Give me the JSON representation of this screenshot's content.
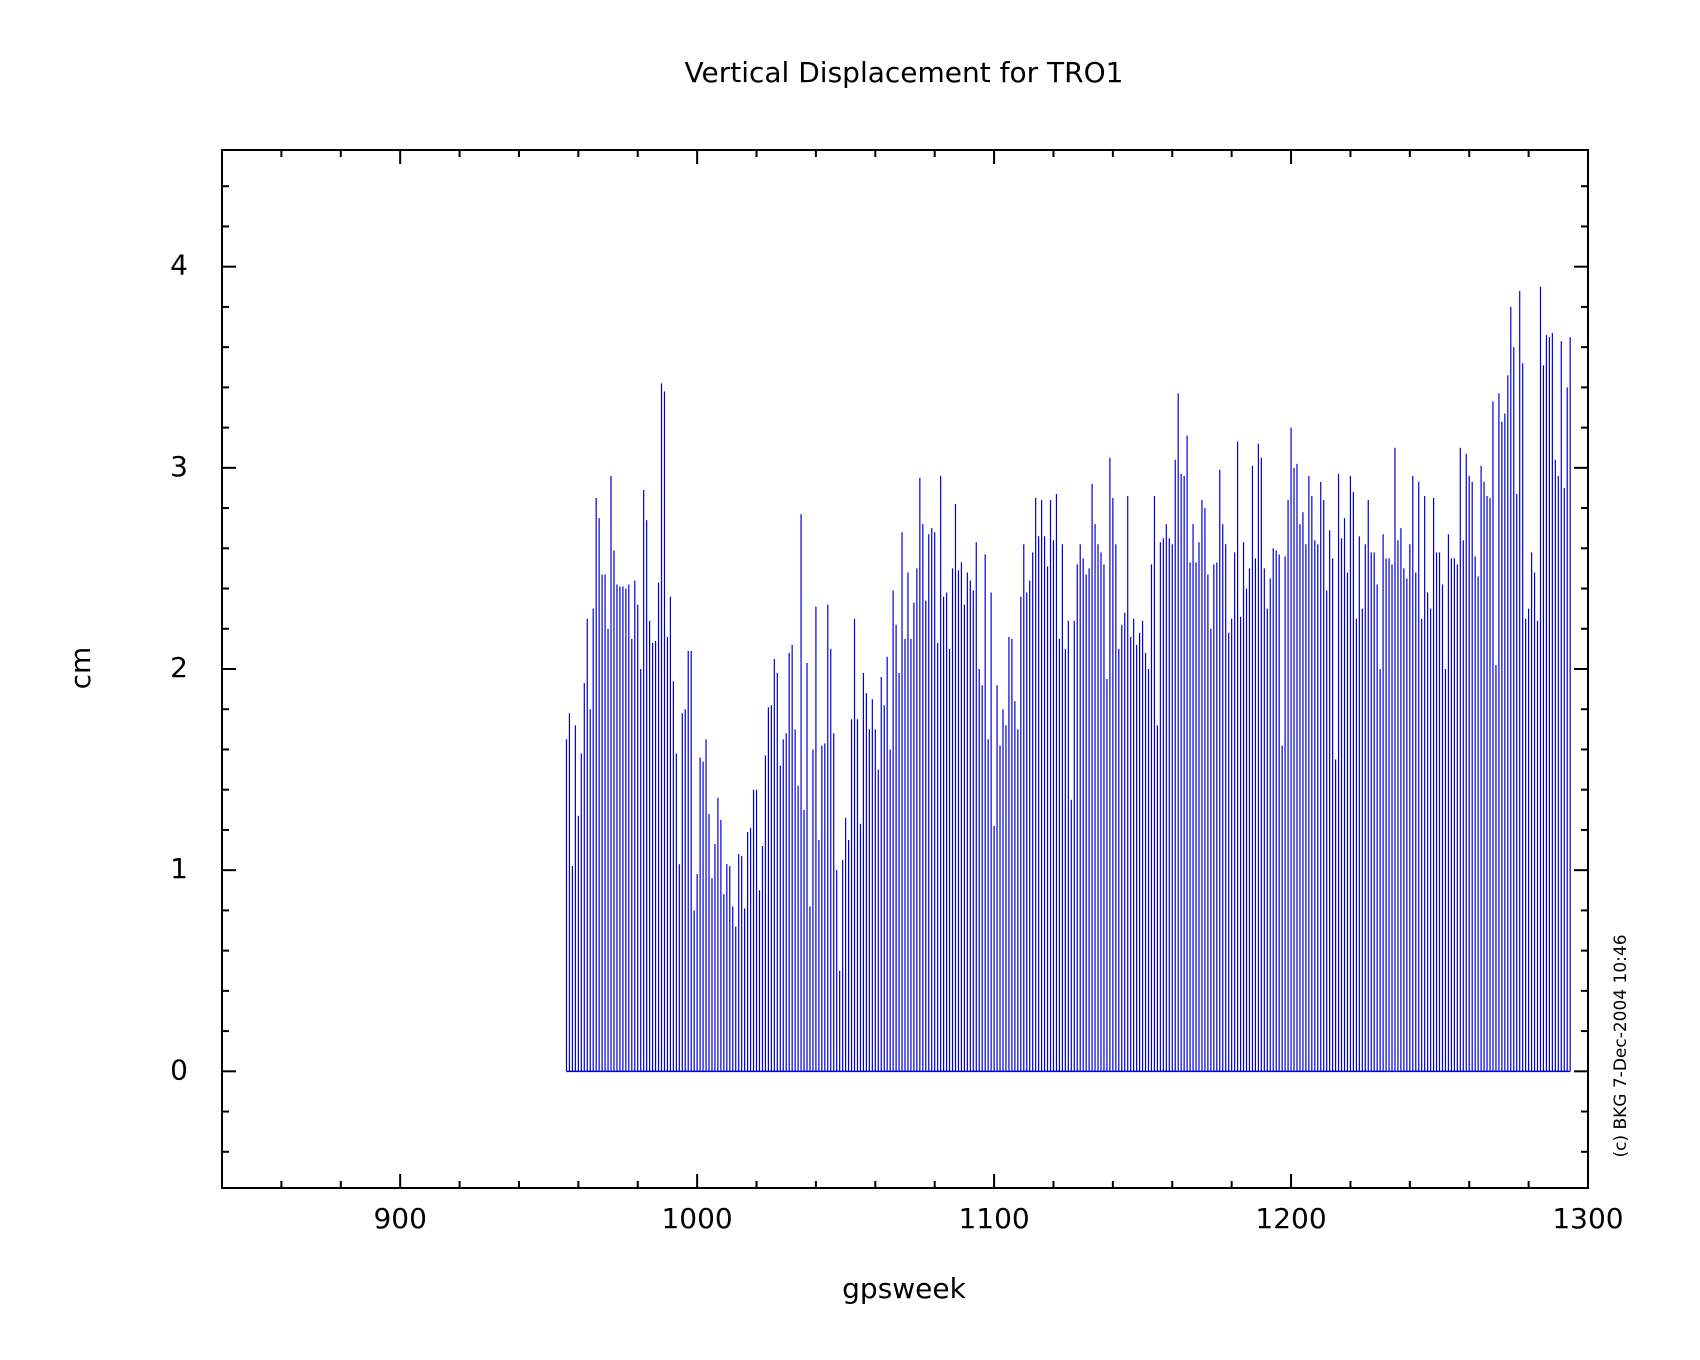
{
  "chart_data": {
    "type": "impulse",
    "title": "Vertical Displacement for TRO1",
    "x_label": "gpsweek",
    "y_label": "cm",
    "footnote": "(c) BKG 7-Dec-2004 10:46",
    "xlim": [
      840,
      1300
    ],
    "ylim": [
      -0.58,
      4.58
    ],
    "xticks": [
      900,
      1000,
      1100,
      1200,
      1300
    ],
    "yticks": [
      0,
      1,
      2,
      3,
      4
    ],
    "xminorticks": [
      860,
      880,
      920,
      940,
      960,
      980,
      1020,
      1040,
      1060,
      1080,
      1120,
      1140,
      1160,
      1180,
      1220,
      1240,
      1260,
      1280
    ],
    "yminorticks": [
      -0.4,
      -0.2,
      0.2,
      0.4,
      0.6,
      0.8,
      1.2,
      1.4,
      1.6,
      1.8,
      2.2,
      2.4,
      2.6,
      2.8,
      3.2,
      3.4,
      3.6,
      3.8,
      4.2,
      4.4
    ],
    "color": "#0000dd",
    "x": [
      956,
      957,
      958,
      959,
      960,
      961,
      962,
      963,
      964,
      965,
      966,
      967,
      968,
      969,
      970,
      971,
      972,
      973,
      974,
      975,
      976,
      977,
      978,
      979,
      980,
      981,
      982,
      983,
      984,
      985,
      986,
      987,
      988,
      989,
      990,
      991,
      992,
      993,
      994,
      995,
      996,
      997,
      998,
      999,
      1000,
      1001,
      1002,
      1003,
      1004,
      1005,
      1006,
      1007,
      1008,
      1009,
      1010,
      1011,
      1012,
      1013,
      1014,
      1015,
      1016,
      1017,
      1018,
      1019,
      1020,
      1021,
      1022,
      1023,
      1024,
      1025,
      1026,
      1027,
      1028,
      1029,
      1030,
      1031,
      1032,
      1033,
      1034,
      1035,
      1036,
      1037,
      1038,
      1039,
      1040,
      1041,
      1042,
      1043,
      1044,
      1045,
      1046,
      1047,
      1048,
      1049,
      1050,
      1051,
      1052,
      1053,
      1054,
      1055,
      1056,
      1057,
      1058,
      1059,
      1060,
      1061,
      1062,
      1063,
      1064,
      1065,
      1066,
      1067,
      1068,
      1069,
      1070,
      1071,
      1072,
      1073,
      1074,
      1075,
      1076,
      1077,
      1078,
      1079,
      1080,
      1081,
      1082,
      1083,
      1084,
      1085,
      1086,
      1087,
      1088,
      1089,
      1090,
      1091,
      1092,
      1093,
      1094,
      1095,
      1096,
      1097,
      1098,
      1099,
      1100,
      1101,
      1102,
      1103,
      1104,
      1105,
      1106,
      1107,
      1108,
      1109,
      1110,
      1111,
      1112,
      1113,
      1114,
      1115,
      1116,
      1117,
      1118,
      1119,
      1120,
      1121,
      1122,
      1123,
      1124,
      1125,
      1126,
      1127,
      1128,
      1129,
      1130,
      1131,
      1132,
      1133,
      1134,
      1135,
      1136,
      1137,
      1138,
      1139,
      1140,
      1141,
      1142,
      1143,
      1144,
      1145,
      1146,
      1147,
      1148,
      1149,
      1150,
      1151,
      1152,
      1153,
      1154,
      1155,
      1156,
      1157,
      1158,
      1159,
      1160,
      1161,
      1162,
      1163,
      1164,
      1165,
      1166,
      1167,
      1168,
      1169,
      1170,
      1171,
      1172,
      1173,
      1174,
      1175,
      1176,
      1177,
      1178,
      1179,
      1180,
      1181,
      1182,
      1183,
      1184,
      1185,
      1186,
      1187,
      1188,
      1189,
      1190,
      1191,
      1192,
      1193,
      1194,
      1195,
      1196,
      1197,
      1198,
      1199,
      1200,
      1201,
      1202,
      1203,
      1204,
      1205,
      1206,
      1207,
      1208,
      1209,
      1210,
      1211,
      1212,
      1213,
      1214,
      1215,
      1216,
      1217,
      1218,
      1219,
      1220,
      1221,
      1222,
      1223,
      1224,
      1225,
      1226,
      1227,
      1228,
      1229,
      1230,
      1231,
      1232,
      1233,
      1234,
      1235,
      1236,
      1237,
      1238,
      1239,
      1240,
      1241,
      1242,
      1243,
      1244,
      1245,
      1246,
      1247,
      1248,
      1249,
      1250,
      1251,
      1252,
      1253,
      1254,
      1255,
      1256,
      1257,
      1258,
      1259,
      1260,
      1261,
      1262,
      1263,
      1264,
      1265,
      1266,
      1267,
      1268,
      1269,
      1270,
      1271,
      1272,
      1273,
      1274,
      1275,
      1276,
      1277,
      1278,
      1279,
      1280,
      1281,
      1282,
      1283,
      1284,
      1285,
      1286,
      1287,
      1288,
      1289,
      1290,
      1291,
      1292,
      1293,
      1294
    ],
    "values": [
      1.65,
      1.78,
      1.02,
      1.72,
      1.27,
      1.58,
      1.93,
      2.25,
      1.8,
      2.3,
      2.85,
      2.75,
      2.47,
      2.47,
      2.2,
      2.96,
      2.59,
      2.42,
      2.41,
      2.41,
      2.4,
      2.42,
      2.15,
      2.44,
      2.32,
      2.0,
      2.89,
      2.74,
      2.24,
      2.13,
      2.14,
      2.43,
      3.42,
      3.38,
      2.16,
      2.36,
      1.94,
      1.58,
      1.03,
      1.78,
      1.8,
      2.09,
      2.09,
      0.8,
      0.98,
      1.56,
      1.54,
      1.65,
      1.28,
      0.96,
      1.13,
      1.36,
      1.25,
      0.88,
      1.03,
      1.02,
      0.82,
      0.72,
      1.08,
      1.07,
      0.81,
      1.19,
      1.21,
      1.4,
      1.4,
      0.9,
      1.12,
      1.57,
      1.81,
      1.82,
      2.05,
      1.98,
      1.52,
      1.65,
      1.68,
      2.08,
      2.12,
      1.7,
      1.42,
      2.77,
      1.3,
      2.03,
      0.82,
      1.6,
      2.31,
      1.15,
      1.62,
      1.63,
      2.32,
      2.1,
      1.68,
      1.0,
      0.5,
      1.05,
      1.26,
      1.15,
      1.75,
      2.25,
      1.75,
      1.23,
      1.98,
      1.88,
      1.7,
      1.85,
      1.7,
      1.5,
      1.96,
      1.82,
      2.06,
      1.6,
      2.39,
      2.22,
      1.98,
      2.68,
      2.15,
      2.48,
      2.15,
      2.33,
      2.5,
      2.95,
      2.72,
      2.34,
      2.67,
      2.7,
      2.68,
      2.13,
      2.96,
      2.36,
      2.38,
      2.1,
      2.5,
      2.82,
      2.49,
      2.53,
      2.32,
      2.48,
      2.44,
      2.39,
      2.63,
      2.0,
      1.92,
      2.57,
      1.65,
      2.38,
      1.22,
      1.92,
      1.62,
      1.8,
      1.72,
      2.16,
      2.15,
      1.84,
      1.7,
      2.36,
      2.62,
      2.38,
      2.44,
      2.58,
      2.85,
      2.66,
      2.84,
      2.66,
      2.51,
      2.84,
      2.64,
      2.87,
      2.15,
      2.62,
      2.1,
      2.24,
      1.35,
      2.24,
      2.52,
      2.62,
      2.55,
      2.47,
      2.5,
      2.92,
      2.72,
      2.62,
      2.58,
      2.52,
      1.95,
      3.05,
      2.85,
      2.62,
      2.1,
      2.22,
      2.28,
      2.86,
      2.16,
      2.25,
      2.12,
      2.18,
      2.24,
      2.08,
      2.0,
      2.52,
      2.86,
      1.72,
      2.63,
      2.65,
      2.72,
      2.65,
      2.62,
      3.04,
      3.37,
      2.97,
      2.96,
      3.16,
      2.53,
      2.72,
      2.53,
      2.63,
      2.84,
      2.8,
      2.47,
      2.2,
      2.52,
      2.53,
      2.99,
      2.72,
      2.62,
      2.18,
      2.25,
      2.58,
      3.13,
      2.26,
      2.63,
      2.4,
      2.5,
      3.01,
      2.55,
      3.12,
      3.05,
      2.5,
      2.3,
      2.45,
      2.6,
      2.59,
      2.57,
      1.62,
      2.56,
      2.84,
      3.2,
      3.0,
      3.02,
      2.72,
      2.78,
      2.62,
      2.96,
      2.86,
      2.64,
      2.62,
      2.93,
      2.84,
      2.39,
      2.69,
      2.55,
      1.55,
      2.97,
      2.65,
      2.75,
      2.48,
      2.96,
      2.88,
      2.25,
      2.66,
      2.3,
      2.62,
      2.84,
      2.58,
      2.58,
      2.42,
      2.0,
      2.67,
      2.55,
      2.55,
      2.52,
      3.1,
      2.64,
      2.7,
      2.5,
      2.45,
      2.62,
      2.96,
      2.48,
      2.93,
      2.25,
      2.86,
      2.38,
      2.3,
      2.85,
      2.58,
      2.58,
      2.42,
      2.0,
      2.67,
      2.55,
      2.55,
      2.52,
      3.1,
      2.64,
      3.07,
      2.96,
      2.93,
      2.56,
      2.46,
      3.01,
      2.93,
      2.86,
      2.85,
      3.33,
      2.02,
      3.37,
      3.23,
      3.27,
      3.46,
      3.8,
      3.6,
      2.87,
      3.88,
      3.52,
      2.25,
      2.3,
      2.58,
      2.48,
      2.24,
      3.9,
      3.51,
      3.66,
      3.65,
      3.67,
      3.04,
      2.96,
      3.63,
      2.9,
      3.4,
      3.65
    ]
  }
}
